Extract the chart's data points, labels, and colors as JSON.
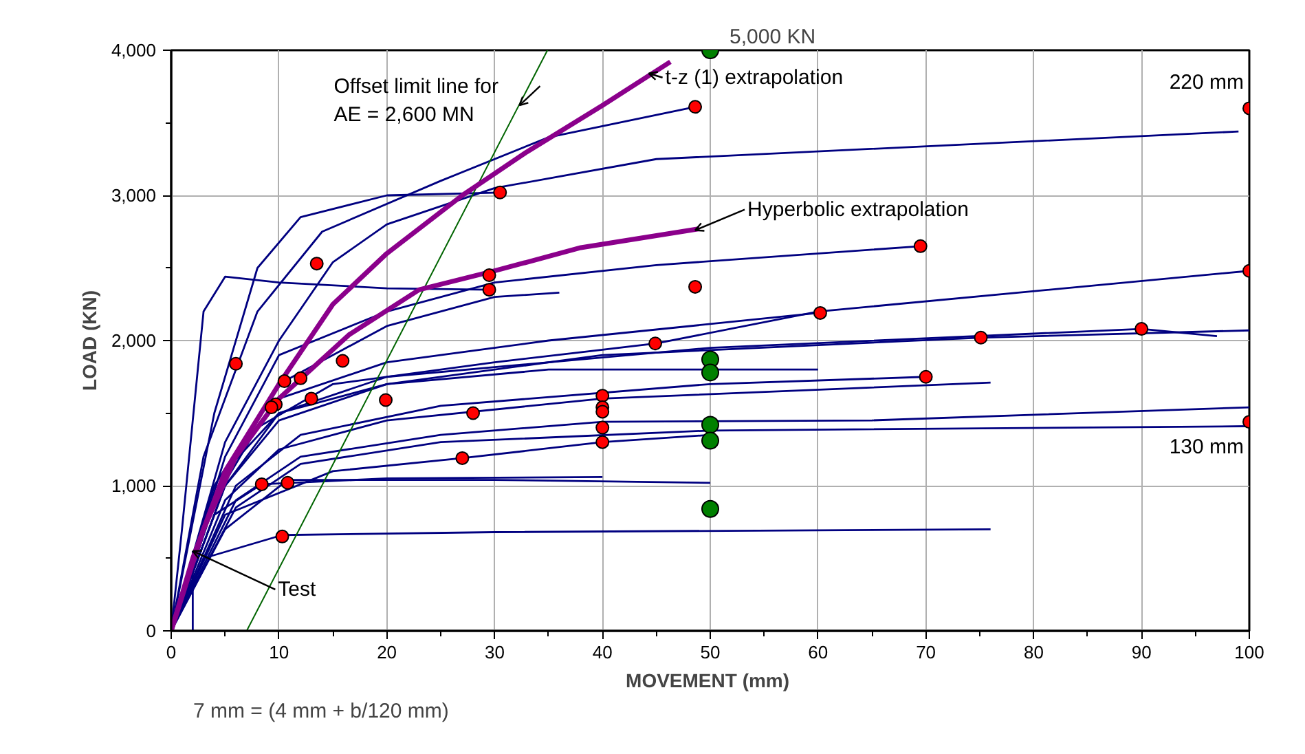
{
  "chart_data": {
    "type": "line",
    "xlabel": "MOVEMENT  (mm)",
    "ylabel": "LOAD (KN)",
    "xlim": [
      0,
      100
    ],
    "xticks": [
      0,
      10,
      20,
      30,
      40,
      50,
      60,
      70,
      80,
      90,
      100
    ],
    "ylim": [
      0,
      4000
    ],
    "yticks": [
      {
        "value": 0,
        "label": "0"
      },
      {
        "value": 1000,
        "label": "1,000"
      },
      {
        "value": 2000,
        "label": "2,000"
      },
      {
        "value": 3000,
        "label": "3,000"
      },
      {
        "value": 4000,
        "label": "4,000"
      }
    ],
    "grid": true,
    "marker": "none",
    "series": [
      {
        "color": "#000080",
        "x": [
          0,
          1,
          3,
          5,
          10,
          20,
          29.5
        ],
        "values": [
          0,
          700,
          2200,
          2440,
          2400,
          2360,
          2350
        ]
      },
      {
        "color": "#000080",
        "x": [
          0,
          3,
          8,
          14,
          25,
          35,
          48.6
        ],
        "values": [
          0,
          1200,
          2200,
          2750,
          3100,
          3400,
          3610
        ]
      },
      {
        "color": "#000080",
        "x": [
          0,
          5,
          10,
          15,
          20,
          30,
          45,
          99
        ],
        "values": [
          0,
          1300,
          2000,
          2540,
          2800,
          3050,
          3250,
          3440
        ]
      },
      {
        "color": "#000080",
        "x": [
          0,
          4,
          8,
          12,
          20,
          30.5
        ],
        "values": [
          0,
          1500,
          2500,
          2850,
          3000,
          3020
        ]
      },
      {
        "color": "#000080",
        "x": [
          0,
          5,
          10,
          20,
          30,
          45,
          69.5
        ],
        "values": [
          0,
          1200,
          1900,
          2200,
          2400,
          2520,
          2650
        ]
      },
      {
        "color": "#000080",
        "x": [
          0,
          5,
          10,
          20,
          35,
          60
        ],
        "values": [
          0,
          1100,
          1600,
          1850,
          2000,
          2190
        ]
      },
      {
        "color": "#000080",
        "x": [
          0,
          4,
          8,
          15,
          30,
          45,
          60,
          100
        ],
        "values": [
          0,
          900,
          1400,
          1700,
          1850,
          1980,
          2200,
          2480
        ]
      },
      {
        "color": "#000080",
        "x": [
          0,
          5,
          10,
          20,
          40,
          75,
          100
        ],
        "values": [
          0,
          1000,
          1450,
          1700,
          1900,
          2020,
          2070
        ]
      },
      {
        "color": "#000080",
        "x": [
          0,
          5,
          10,
          20,
          50,
          90,
          97
        ],
        "values": [
          0,
          1100,
          1500,
          1750,
          1950,
          2080,
          2030
        ]
      },
      {
        "color": "#000080",
        "x": [
          0,
          4,
          10,
          20,
          30,
          36
        ],
        "values": [
          0,
          1000,
          1700,
          2100,
          2300,
          2330
        ]
      },
      {
        "color": "#000080",
        "x": [
          0,
          6,
          12,
          25,
          50,
          70
        ],
        "values": [
          0,
          1000,
          1350,
          1550,
          1700,
          1750
        ]
      },
      {
        "color": "#000080",
        "x": [
          0,
          5,
          10,
          20,
          35,
          60
        ],
        "values": [
          0,
          1000,
          1500,
          1700,
          1800,
          1800
        ]
      },
      {
        "color": "#000080",
        "x": [
          0,
          5,
          10,
          20,
          40,
          76
        ],
        "values": [
          0,
          900,
          1250,
          1450,
          1600,
          1710
        ]
      },
      {
        "color": "#000080",
        "x": [
          0,
          6,
          12,
          25,
          40,
          65,
          100
        ],
        "values": [
          0,
          900,
          1200,
          1350,
          1440,
          1450,
          1540
        ]
      },
      {
        "color": "#000080",
        "x": [
          0,
          6,
          12,
          25,
          50,
          100
        ],
        "values": [
          0,
          850,
          1150,
          1300,
          1380,
          1410
        ]
      },
      {
        "color": "#000080",
        "x": [
          0,
          5,
          15,
          27,
          40,
          50
        ],
        "values": [
          0,
          800,
          1100,
          1190,
          1300,
          1350
        ]
      },
      {
        "color": "#000080",
        "x": [
          0,
          4,
          8.4,
          20,
          40
        ],
        "values": [
          0,
          800,
          1010,
          1050,
          1060
        ]
      },
      {
        "color": "#000080",
        "x": [
          0,
          5,
          10.8,
          30,
          50
        ],
        "values": [
          0,
          700,
          1040,
          1040,
          1020
        ]
      },
      {
        "color": "#000080",
        "x": [
          0,
          3,
          10.3,
          30,
          76
        ],
        "values": [
          0,
          500,
          660,
          680,
          700
        ]
      },
      {
        "color": "#000080",
        "x": [
          2,
          2
        ],
        "values": [
          0,
          550
        ]
      },
      {
        "color": "#006400",
        "x": [
          7,
          34.9
        ],
        "values": [
          0,
          4000
        ]
      },
      {
        "color": "#8b008b",
        "x": [
          0,
          2,
          5,
          10,
          15,
          20,
          27,
          33,
          40,
          46.3
        ],
        "values": [
          0,
          500,
          1100,
          1700,
          2250,
          2600,
          3000,
          3300,
          3620,
          3920
        ]
      },
      {
        "color": "#8b008b",
        "x": [
          0,
          3,
          6,
          10,
          16.5,
          23,
          30,
          38,
          49
        ],
        "values": [
          0,
          700,
          1200,
          1600,
          2040,
          2350,
          2480,
          2640,
          2770
        ]
      },
      {
        "type": "scatter",
        "color": "#ff0000",
        "marker": "circle",
        "x": [
          6,
          29.5,
          29.5,
          30.5,
          13.5,
          48.6,
          48.6,
          44.9,
          60.2,
          69.5,
          100,
          100,
          90,
          75.1,
          70,
          100,
          40,
          40,
          40,
          40,
          40,
          10.5,
          12,
          15.9,
          13,
          9.7,
          9.3,
          19.9,
          28,
          27,
          8.4,
          10.8,
          10.3
        ],
        "values": [
          1840,
          2450,
          2350,
          3020,
          2530,
          3610,
          2370,
          1980,
          2190,
          2650,
          2480,
          3600,
          2080,
          2020,
          1750,
          1440,
          1620,
          1540,
          1510,
          1400,
          1300,
          1720,
          1740,
          1860,
          1600,
          1560,
          1540,
          1590,
          1500,
          1190,
          1010,
          1020,
          650
        ]
      },
      {
        "type": "scatter",
        "color": "#008000",
        "marker": "circle",
        "x": [
          50,
          50,
          50,
          50,
          50,
          50
        ],
        "values": [
          4000,
          1870,
          1780,
          1420,
          1310,
          840
        ]
      }
    ],
    "annotations": [
      {
        "text": "Offset limit line for\nAE = 2,600 MN",
        "x": 32.3,
        "y": 3620
      },
      {
        "text": "t-z (1) extrapolation",
        "x": 44.3,
        "y": 3840
      },
      {
        "text": "Hyperbolic extrapolation",
        "x": 48.6,
        "y": 2760
      },
      "5,000 KN",
      {
        "text": "220 mm",
        "x": 100,
        "y": 3600
      },
      {
        "text": "130 mm",
        "x": 100,
        "y": 1440
      },
      {
        "text": "Test",
        "x": 2,
        "y": 550
      },
      "7 mm = (4 mm + b/120 mm)"
    ]
  }
}
